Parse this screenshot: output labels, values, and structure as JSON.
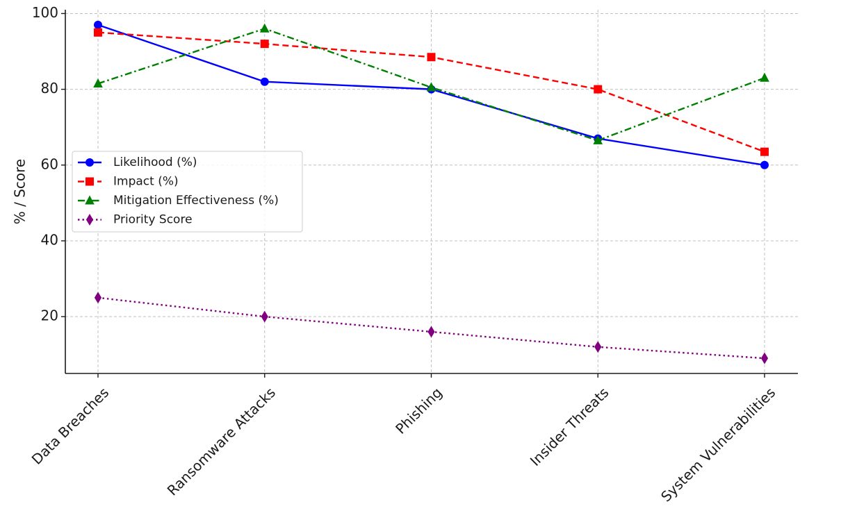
{
  "chart_data": {
    "type": "line",
    "title": "",
    "xlabel": "",
    "ylabel": "% / Score",
    "categories": [
      "Data Breaches",
      "Ransomware Attacks",
      "Phishing",
      "Insider Threats",
      "System Vulnerabilities"
    ],
    "ylim": [
      5,
      101
    ],
    "yticks": [
      20,
      40,
      60,
      80,
      100
    ],
    "grid": true,
    "legend_position": "center-left",
    "series": [
      {
        "name": "Likelihood (%)",
        "values": [
          97,
          82,
          80,
          67,
          60
        ],
        "color": "#0000ff",
        "dash": "solid",
        "marker": "circle"
      },
      {
        "name": "Impact (%)",
        "values": [
          95,
          92,
          88.5,
          80,
          63.5
        ],
        "color": "#ff0000",
        "dash": "dashed",
        "marker": "square"
      },
      {
        "name": "Mitigation Effectiveness (%)",
        "values": [
          81.5,
          96,
          80.5,
          66.5,
          83
        ],
        "color": "#008000",
        "dash": "dashdot",
        "marker": "triangle"
      },
      {
        "name": "Priority Score",
        "values": [
          25,
          20,
          16,
          12,
          9
        ],
        "color": "#800080",
        "dash": "dotted",
        "marker": "diamond"
      }
    ]
  }
}
